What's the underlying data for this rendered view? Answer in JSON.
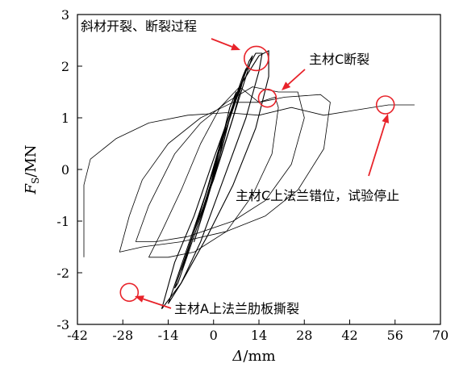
{
  "chart_data": {
    "type": "line",
    "title": "",
    "xlabel": "Δ/mm",
    "xlabel_symbol": "Δ",
    "xlabel_unit": "/mm",
    "ylabel": "Fs/MN",
    "ylabel_symbol": "F",
    "ylabel_subscript": "S",
    "ylabel_unit": "/MN",
    "xlim": [
      -42,
      70
    ],
    "ylim": [
      -3,
      3
    ],
    "xticks": [
      -42,
      -28,
      -14,
      0,
      14,
      28,
      42,
      56,
      70
    ],
    "xtick_labels": [
      "-42",
      "-28",
      "-14",
      "0",
      "14",
      "28",
      "42",
      "56",
      "70"
    ],
    "yticks": [
      -3,
      -2,
      -1,
      0,
      1,
      2,
      3
    ],
    "ytick_labels": [
      "-3",
      "-2",
      "-1",
      "0",
      "1",
      "2",
      "3"
    ],
    "grid": false,
    "line_color": "#000000",
    "annotation_color": "#e8232a",
    "series": [
      {
        "loops": [
          [
            [
              -2,
              -0.6
            ],
            [
              2,
              0.5
            ],
            [
              4,
              0.9
            ],
            [
              2,
              0.3
            ],
            [
              -1,
              -0.3
            ],
            [
              -3,
              -0.7
            ],
            [
              -2,
              -0.6
            ]
          ],
          [
            [
              -5,
              -1.2
            ],
            [
              0,
              -0.1
            ],
            [
              5,
              1.2
            ],
            [
              7,
              1.5
            ],
            [
              3,
              0.5
            ],
            [
              -2,
              -0.6
            ],
            [
              -6,
              -1.4
            ],
            [
              -5,
              -1.2
            ]
          ],
          [
            [
              -9,
              -1.8
            ],
            [
              -3,
              -0.6
            ],
            [
              3,
              0.7
            ],
            [
              9,
              1.8
            ],
            [
              10,
              1.95
            ],
            [
              6,
              1.0
            ],
            [
              0,
              -0.2
            ],
            [
              -6,
              -1.2
            ],
            [
              -10,
              -1.95
            ],
            [
              -9,
              -1.8
            ]
          ],
          [
            [
              -12,
              -2.3
            ],
            [
              -6,
              -1.2
            ],
            [
              0,
              0.0
            ],
            [
              6,
              1.2
            ],
            [
              11,
              2.1
            ],
            [
              12,
              2.2
            ],
            [
              8,
              1.4
            ],
            [
              2,
              0.2
            ],
            [
              -5,
              -1.1
            ],
            [
              -11,
              -2.2
            ],
            [
              -12,
              -2.3
            ]
          ],
          [
            [
              -14,
              -2.6
            ],
            [
              -8,
              -1.5
            ],
            [
              -2,
              -0.4
            ],
            [
              4,
              0.8
            ],
            [
              10,
              1.9
            ],
            [
              13,
              2.25
            ],
            [
              15,
              2.25
            ],
            [
              14,
              1.9
            ],
            [
              10,
              1.0
            ],
            [
              3,
              -0.2
            ],
            [
              -4,
              -1.4
            ],
            [
              -10,
              -2.2
            ],
            [
              -14,
              -2.6
            ]
          ],
          [
            [
              -16,
              -2.7
            ],
            [
              -12,
              -1.8
            ],
            [
              -6,
              -0.9
            ],
            [
              0,
              0.2
            ],
            [
              8,
              1.6
            ],
            [
              14,
              2.2
            ],
            [
              17,
              2.3
            ],
            [
              17,
              1.8
            ],
            [
              13,
              0.8
            ],
            [
              6,
              -0.3
            ],
            [
              -2,
              -1.3
            ],
            [
              -10,
              -2.2
            ],
            [
              -16,
              -2.7
            ]
          ],
          [
            [
              -20,
              -1.7
            ],
            [
              -16,
              -1.2
            ],
            [
              -10,
              -0.4
            ],
            [
              -4,
              0.5
            ],
            [
              2,
              1.2
            ],
            [
              8,
              1.6
            ],
            [
              14,
              1.3
            ],
            [
              19,
              1.4
            ],
            [
              20,
              1.2
            ],
            [
              18,
              0.3
            ],
            [
              12,
              -0.5
            ],
            [
              4,
              -1.2
            ],
            [
              -6,
              -1.6
            ],
            [
              -14,
              -1.7
            ],
            [
              -20,
              -1.7
            ]
          ],
          [
            [
              -24,
              -1.4
            ],
            [
              -20,
              -0.7
            ],
            [
              -12,
              0.3
            ],
            [
              -4,
              0.9
            ],
            [
              4,
              1.3
            ],
            [
              12,
              1.6
            ],
            [
              20,
              1.5
            ],
            [
              26,
              1.5
            ],
            [
              28,
              1.0
            ],
            [
              24,
              0.1
            ],
            [
              16,
              -0.6
            ],
            [
              6,
              -1.0
            ],
            [
              -8,
              -1.3
            ],
            [
              -18,
              -1.4
            ],
            [
              -24,
              -1.4
            ]
          ],
          [
            [
              -29,
              -1.6
            ],
            [
              -26,
              -0.9
            ],
            [
              -22,
              -0.2
            ],
            [
              -14,
              0.5
            ],
            [
              -4,
              1.0
            ],
            [
              6,
              1.3
            ],
            [
              14,
              1.3
            ],
            [
              22,
              1.4
            ],
            [
              33,
              1.45
            ],
            [
              36,
              1.3
            ],
            [
              34,
              0.4
            ],
            [
              26,
              -0.4
            ],
            [
              16,
              -0.9
            ],
            [
              4,
              -1.2
            ],
            [
              -10,
              -1.4
            ],
            [
              -22,
              -1.5
            ],
            [
              -29,
              -1.6
            ]
          ],
          [
            [
              -40,
              -1.7
            ],
            [
              -40,
              -0.3
            ],
            [
              -38,
              0.2
            ],
            [
              -30,
              0.6
            ],
            [
              -20,
              0.9
            ],
            [
              -8,
              1.05
            ],
            [
              4,
              1.1
            ],
            [
              14,
              1.05
            ],
            [
              24,
              1.2
            ],
            [
              34,
              1.05
            ],
            [
              44,
              1.15
            ],
            [
              54,
              1.25
            ],
            [
              62,
              1.25
            ]
          ]
        ]
      }
    ],
    "annotations": [
      {
        "text": "斜材开裂、断裂过程",
        "marker": [
          13.2,
          2.15
        ]
      },
      {
        "text": "主材C断裂",
        "marker": [
          16.6,
          1.38
        ]
      },
      {
        "text": "主材C上法兰错位，试验停止",
        "marker": [
          53,
          1.25
        ]
      },
      {
        "text": "主材A上法兰肋板撕裂",
        "marker": [
          -26,
          -2.38
        ]
      }
    ]
  }
}
